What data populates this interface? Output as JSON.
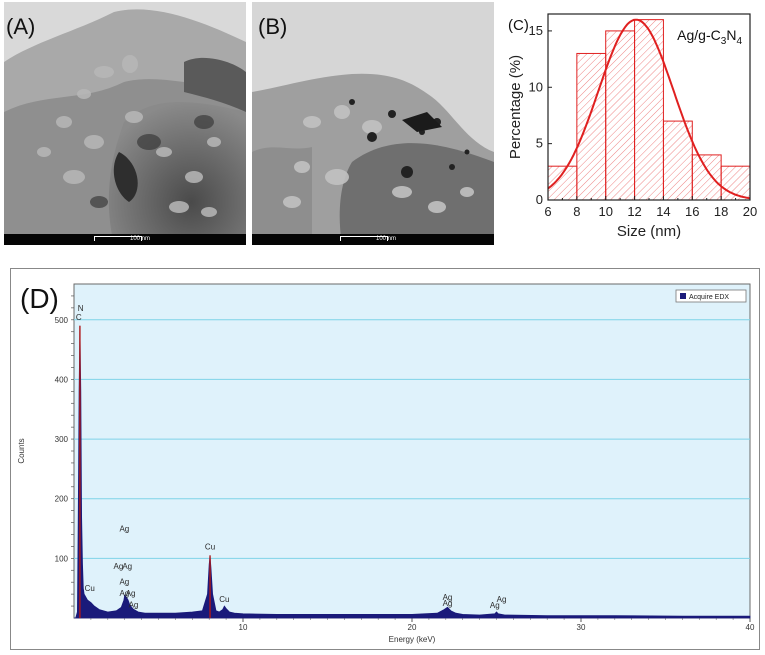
{
  "panels": {
    "a": {
      "label": "(A)",
      "scale_bar_text": "100 nm"
    },
    "b": {
      "label": "(B)",
      "scale_bar_text": "100 nm"
    },
    "c": {
      "label": "(C)"
    },
    "d": {
      "label": "(D)"
    }
  },
  "colors": {
    "histogram": "#e02020",
    "edx_background": "#dff2fb",
    "edx_grid": "#7fd3e8",
    "edx_spectrum": "#1a1a7a",
    "edx_peak": "#b01818"
  },
  "chart_data": [
    {
      "type": "bar",
      "title": "",
      "legend_text": "Ag/g-C3N4",
      "legend_position": "top-right",
      "xlabel": "Size (nm)",
      "ylabel": "Percentage (%)",
      "xlim": [
        6,
        20
      ],
      "ylim": [
        0,
        16.5
      ],
      "xticks": [
        6,
        8,
        10,
        12,
        14,
        16,
        18,
        20
      ],
      "yticks": [
        0,
        5,
        10,
        15
      ],
      "bins": [
        [
          6,
          8
        ],
        [
          8,
          10
        ],
        [
          10,
          12
        ],
        [
          12,
          14
        ],
        [
          14,
          16
        ],
        [
          16,
          18
        ],
        [
          18,
          20
        ]
      ],
      "values": [
        3,
        13,
        15,
        16,
        7,
        4,
        3
      ],
      "fit": {
        "type": "gaussian",
        "peak": 16,
        "center": 12.1,
        "sigma": 2.6
      },
      "bar_fill": "hatched",
      "grid": false
    },
    {
      "type": "line",
      "title": "",
      "xlabel": "Energy (keV)",
      "ylabel": "Counts",
      "xlim": [
        0,
        40
      ],
      "ylim": [
        0,
        560
      ],
      "xticks": [
        10,
        20,
        30,
        40
      ],
      "yticks": [
        100,
        200,
        300,
        400,
        500
      ],
      "legend": [
        "Acquire EDX"
      ],
      "legend_position": "top-right",
      "grid": true,
      "series": [
        {
          "name": "Acquire EDX",
          "x": [
            0.0,
            0.1,
            0.2,
            0.25,
            0.3,
            0.35,
            0.4,
            0.45,
            0.5,
            0.55,
            0.6,
            0.7,
            0.8,
            0.9,
            1.0,
            1.2,
            1.5,
            2.0,
            2.5,
            2.8,
            2.95,
            3.0,
            3.1,
            3.2,
            3.3,
            3.5,
            3.8,
            4.2,
            5.0,
            6.0,
            7.0,
            7.6,
            7.9,
            8.0,
            8.05,
            8.1,
            8.2,
            8.4,
            8.6,
            8.8,
            8.9,
            9.0,
            9.2,
            9.5,
            10.0,
            12.0,
            15.0,
            18.0,
            20.0,
            21.5,
            21.9,
            22.1,
            22.3,
            22.6,
            23.0,
            24.0,
            24.9,
            25.0,
            25.1,
            25.5,
            28.0,
            32.0,
            36.0,
            40.0
          ],
          "y": [
            0,
            0,
            10,
            160,
            380,
            490,
            380,
            170,
            90,
            50,
            40,
            35,
            30,
            28,
            26,
            20,
            14,
            10,
            12,
            18,
            30,
            38,
            35,
            30,
            22,
            15,
            10,
            8,
            8,
            8,
            10,
            12,
            40,
            90,
            105,
            85,
            40,
            12,
            10,
            14,
            20,
            16,
            10,
            8,
            7,
            6,
            6,
            6,
            6,
            8,
            14,
            18,
            12,
            8,
            6,
            5,
            7,
            10,
            7,
            5,
            4,
            4,
            3,
            3
          ]
        }
      ],
      "peak_labels": [
        {
          "text": "N",
          "x": 0.39,
          "y": 515
        },
        {
          "text": "C",
          "x": 0.28,
          "y": 500
        },
        {
          "text": "Cu",
          "x": 0.93,
          "y": 45
        },
        {
          "text": "Ag",
          "x": 2.98,
          "y": 145
        },
        {
          "text": "Ag",
          "x": 2.63,
          "y": 82
        },
        {
          "text": "Ag",
          "x": 3.15,
          "y": 82
        },
        {
          "text": "Ag",
          "x": 2.98,
          "y": 56
        },
        {
          "text": "Ag",
          "x": 2.98,
          "y": 37
        },
        {
          "text": "Ag",
          "x": 3.35,
          "y": 37
        },
        {
          "text": "Ag",
          "x": 3.52,
          "y": 18
        },
        {
          "text": "Cu",
          "x": 8.05,
          "y": 115
        },
        {
          "text": "Cu",
          "x": 8.9,
          "y": 27
        },
        {
          "text": "Ag",
          "x": 22.1,
          "y": 30
        },
        {
          "text": "Ag",
          "x": 22.1,
          "y": 20
        },
        {
          "text": "Ag",
          "x": 24.9,
          "y": 17
        },
        {
          "text": "Ag",
          "x": 25.3,
          "y": 27
        }
      ]
    }
  ]
}
